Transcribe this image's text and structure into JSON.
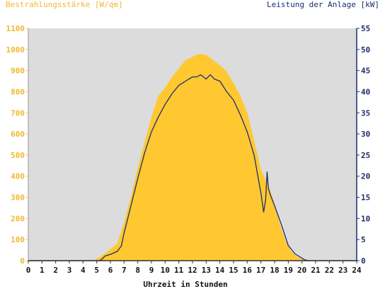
{
  "chart_data": {
    "type": "area",
    "left_axis_title": "Bestrahlungsstärke [W/qm]",
    "right_axis_title": "Leistung der Anlage [kW]",
    "xlabel": "Uhrzeit in Stunden",
    "x_ticks": [
      "0",
      "1",
      "2",
      "3",
      "4",
      "5",
      "6",
      "7",
      "8",
      "9",
      "10",
      "11",
      "12",
      "13",
      "14",
      "15",
      "16",
      "17",
      "18",
      "19",
      "20",
      "21",
      "22",
      "23",
      "24"
    ],
    "y_left_ticks": [
      "0",
      "100",
      "200",
      "300",
      "400",
      "500",
      "600",
      "700",
      "800",
      "900",
      "1000",
      "1100"
    ],
    "y_right_ticks": [
      "0",
      "5",
      "10",
      "15",
      "20",
      "25",
      "30",
      "35",
      "40",
      "45",
      "50",
      "55"
    ],
    "xlim": [
      0,
      24
    ],
    "ylim_left": [
      0,
      1100
    ],
    "ylim_right": [
      0,
      55
    ],
    "grid": false,
    "colors": {
      "plot_background": "#dcdcdc",
      "irradiance_fill": "#ffc830",
      "power_line": "#1e2d6e",
      "left_axis_text": "#f0b830",
      "right_axis_text": "#1e2d6e",
      "x_axis_text": "#111111"
    },
    "series": [
      {
        "axis": "left",
        "style": "area",
        "x": [
          0,
          4.8,
          5.0,
          5.3,
          5.6,
          6.0,
          6.5,
          7.0,
          7.5,
          8.0,
          8.5,
          9.0,
          9.5,
          10.0,
          10.5,
          11.0,
          11.5,
          12.0,
          12.3,
          12.6,
          12.8,
          13.0,
          13.3,
          13.6,
          14.0,
          14.5,
          15.0,
          15.5,
          16.0,
          16.5,
          17.0,
          17.3,
          17.6,
          18.0,
          18.4,
          18.8,
          19.2,
          19.6,
          20.0,
          20.2,
          20.4,
          24
        ],
        "y": [
          0,
          0,
          10,
          20,
          35,
          55,
          80,
          180,
          300,
          440,
          560,
          680,
          780,
          820,
          870,
          910,
          950,
          965,
          975,
          980,
          975,
          975,
          960,
          945,
          925,
          895,
          840,
          780,
          700,
          570,
          430,
          390,
          350,
          270,
          170,
          95,
          45,
          20,
          8,
          3,
          0,
          0
        ]
      },
      {
        "axis": "right",
        "style": "line",
        "x": [
          0,
          5.2,
          5.4,
          5.6,
          6.0,
          6.5,
          6.8,
          7.0,
          7.5,
          8.0,
          8.5,
          9.0,
          9.5,
          10.0,
          10.5,
          11.0,
          11.5,
          12.0,
          12.3,
          12.6,
          13.0,
          13.3,
          13.6,
          14.0,
          14.5,
          15.0,
          15.5,
          16.0,
          16.5,
          17.0,
          17.2,
          17.35,
          17.45,
          17.55,
          17.7,
          18.0,
          18.5,
          19.0,
          19.5,
          20.0,
          20.2,
          20.5,
          24
        ],
        "y": [
          0,
          0,
          0.4,
          1.1,
          1.5,
          2.2,
          3.5,
          6.5,
          13,
          19.5,
          25.5,
          30.5,
          34,
          37,
          39.5,
          41.5,
          42.5,
          43.5,
          43.5,
          44,
          43,
          44,
          43,
          42.5,
          40,
          38,
          34.5,
          30.5,
          25,
          16,
          11.5,
          14.5,
          21,
          17,
          15.5,
          13,
          8.5,
          3.6,
          1.6,
          0.6,
          0.2,
          0,
          0
        ]
      }
    ]
  }
}
